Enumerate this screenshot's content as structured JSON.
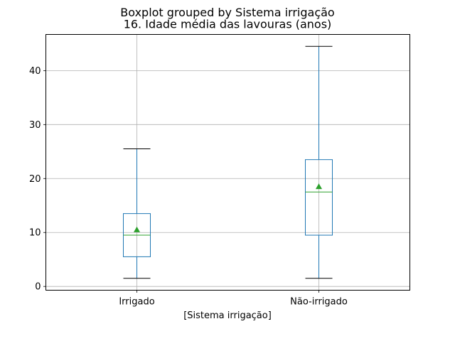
{
  "chart_data": {
    "type": "boxplot",
    "suptitle": "Boxplot grouped by Sistema irrigação",
    "title": "16. Idade média das lavouras  (anos)",
    "xlabel": "[Sistema irrigação]",
    "ylabel": "",
    "ylim": [
      -0.7,
      46.7
    ],
    "yticks": [
      0,
      10,
      20,
      30,
      40
    ],
    "grid": true,
    "categories": [
      "Irrigado",
      "Não-irrigado"
    ],
    "boxes": [
      {
        "category": "Irrigado",
        "whisker_low": 1.5,
        "q1": 5.5,
        "median": 9.5,
        "q3": 13.5,
        "whisker_high": 25.5,
        "mean": 10.5
      },
      {
        "category": "Não-irrigado",
        "whisker_low": 1.5,
        "q1": 9.5,
        "median": 17.5,
        "q3": 23.5,
        "whisker_high": 44.5,
        "mean": 18.5
      }
    ],
    "colors": {
      "box": "#1f77b4",
      "median": "#2ca02c",
      "mean": "#2ca02c",
      "whisker": "#1f77b4",
      "cap": "#000000",
      "grid": "#b0b0b0"
    }
  }
}
